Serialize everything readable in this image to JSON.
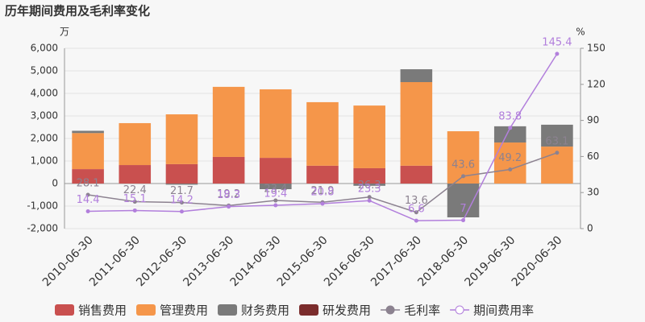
{
  "chart_data": {
    "type": "bar",
    "title": "历年期间费用及毛利率变化",
    "y_label": "万",
    "y2_label": "%",
    "categories": [
      "2010-06-30",
      "2011-06-30",
      "2012-06-30",
      "2013-06-30",
      "2014-06-30",
      "2015-06-30",
      "2016-06-30",
      "2017-06-30",
      "2018-06-30",
      "2019-06-30",
      "2020-06-30"
    ],
    "ylim": [
      -2000,
      6000
    ],
    "yticks": [
      {
        "value": -2000,
        "label": "-2,000"
      },
      {
        "value": -1000,
        "label": "-1,000"
      },
      0,
      {
        "value": 1000,
        "label": "1,000"
      },
      {
        "value": 2000,
        "label": "2,000"
      },
      {
        "value": 3000,
        "label": "3,000"
      },
      {
        "value": 4000,
        "label": "4,000"
      },
      {
        "value": 5000,
        "label": "5,000"
      },
      {
        "value": 6000,
        "label": "6,000"
      }
    ],
    "y2lim": [
      0,
      150
    ],
    "y2ticks": [
      0,
      30,
      60,
      90,
      120,
      150
    ],
    "grid": true,
    "series": [
      {
        "name": "销售费用",
        "color": "#c9504f",
        "type": "bar",
        "values": [
          640,
          820,
          860,
          1180,
          1140,
          790,
          680,
          790,
          0,
          0,
          0
        ]
      },
      {
        "name": "管理费用",
        "color": "#f5964a",
        "type": "bar",
        "values": [
          1600,
          1860,
          2210,
          3110,
          3040,
          2820,
          2780,
          3710,
          2320,
          1820,
          1640
        ]
      },
      {
        "name": "财务费用",
        "color": "#7a7a7a",
        "type": "bar",
        "values": [
          100,
          0,
          -50,
          0,
          -250,
          0,
          -100,
          570,
          -1500,
          720,
          970
        ]
      },
      {
        "name": "研发费用",
        "color": "#7b2c2c",
        "type": "bar",
        "values": [
          0,
          0,
          0,
          0,
          0,
          0,
          0,
          0,
          0,
          0,
          0
        ]
      },
      {
        "name": "毛利率",
        "color": "#8c8290",
        "type": "line",
        "axis": "y2",
        "values": [
          28.1,
          22.4,
          21.7,
          19.2,
          23.4,
          21.9,
          26.3,
          13.6,
          43.6,
          49.2,
          63.1
        ]
      },
      {
        "name": "期间费用率",
        "color": "#b27fdc",
        "type": "line",
        "axis": "y2",
        "values": [
          14.4,
          15.1,
          14.2,
          18.3,
          19.4,
          20.8,
          23.3,
          6.6,
          7,
          83.8,
          145.4
        ]
      }
    ]
  }
}
